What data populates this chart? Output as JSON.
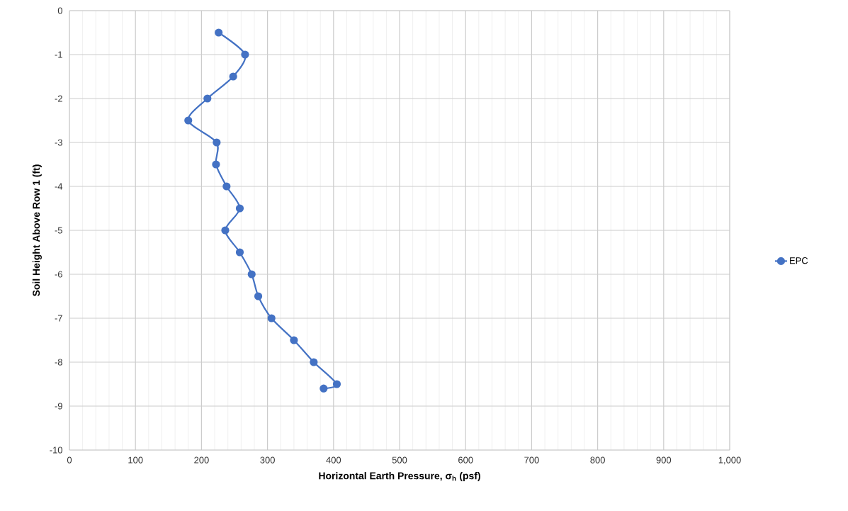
{
  "chart_data": {
    "type": "line",
    "xlabel": "Horizontal Earth Pressure, σ$_{h}$  (psf)",
    "ylabel": "Soil Height Above Row 1 (ft)",
    "xlim": [
      0,
      1000
    ],
    "ylim": [
      -10,
      0
    ],
    "xticks": [
      0,
      100,
      200,
      300,
      400,
      500,
      600,
      700,
      800,
      900,
      {
        "value": 1000,
        "label": "1,000"
      }
    ],
    "yticks": [
      -10,
      -9,
      -8,
      -7,
      -6,
      -5,
      -4,
      -3,
      -2,
      -1,
      0
    ],
    "grid": true,
    "legend": "right",
    "marker": "circle",
    "line_style": "solid",
    "series": [
      {
        "name": "EPC",
        "color": "#4472c4",
        "x": [
          226,
          266,
          248,
          209,
          180,
          223,
          222,
          238,
          258,
          236,
          258,
          276,
          286,
          306,
          340,
          370,
          405,
          385
        ],
        "values": [
          -0.5,
          -1,
          -1.5,
          -2,
          -2.5,
          -3,
          -3.5,
          -4,
          -4.5,
          -5,
          -5.5,
          -6,
          -6.5,
          -7,
          -7.5,
          -8,
          -8.5,
          -8.6
        ]
      }
    ]
  }
}
